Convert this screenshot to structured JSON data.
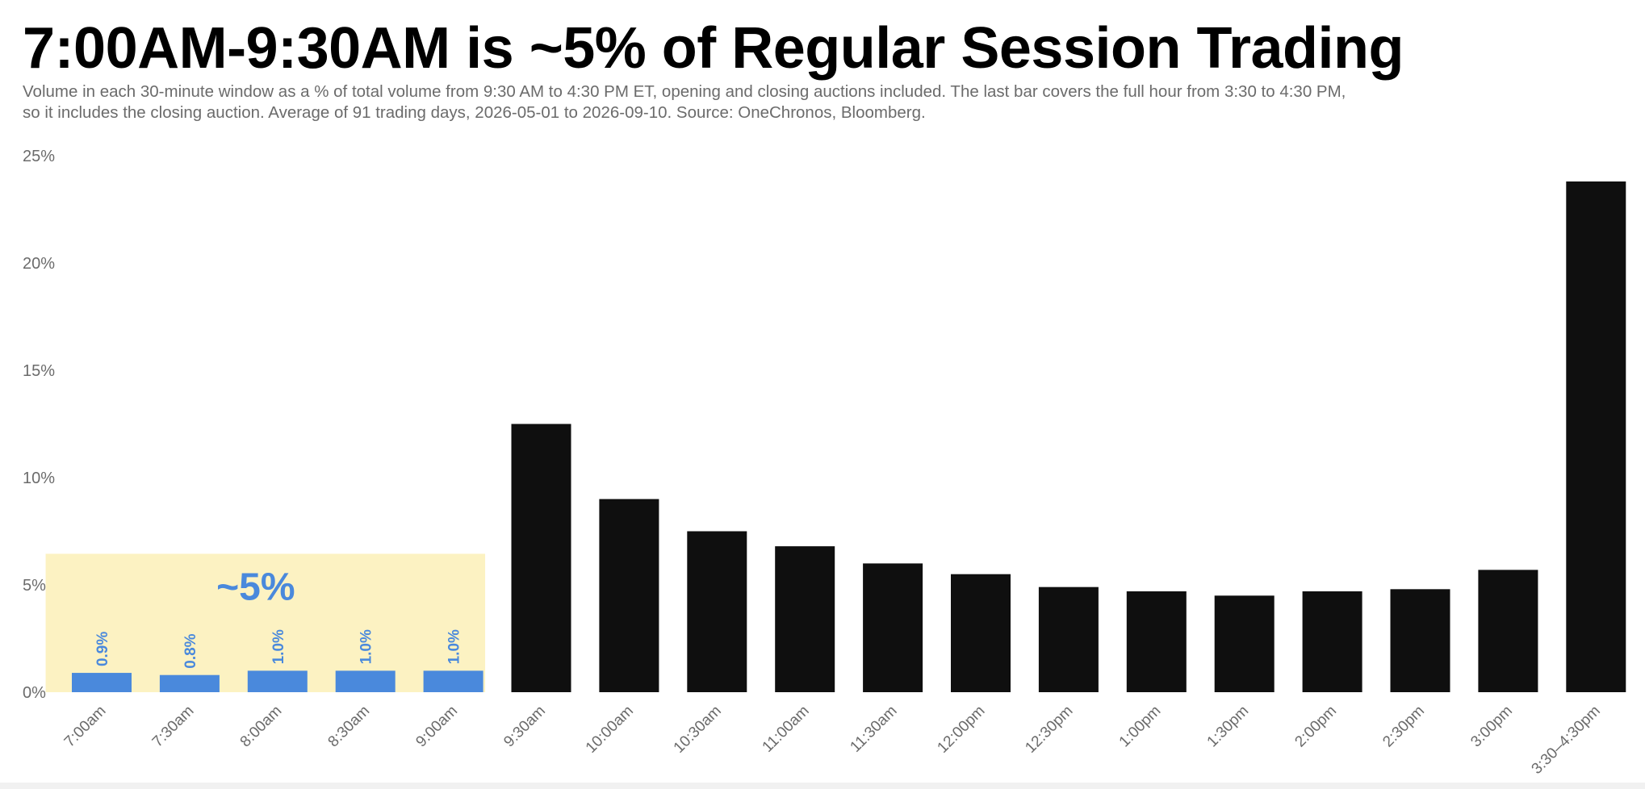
{
  "header": {
    "title": "7:00AM-9:30AM is ~5% of Regular Session Trading",
    "subtitle": "Volume in each 30-minute window as a % of total volume from 9:30 AM to 4:30 PM ET, opening and closing auctions included. The last bar covers the full hour from 3:30 to 4:30 PM, so it includes the closing auction. Average of 91 trading days, 2026-05-01 to 2026-09-10. Source: OneChronos, Bloomberg."
  },
  "chart_data": {
    "type": "bar",
    "title": "7:00AM-9:30AM is ~5% of Regular Session Trading",
    "ylim": [
      0,
      25
    ],
    "yticks": [
      0,
      5,
      10,
      15,
      20,
      25
    ],
    "ytick_labels": [
      "0%",
      "5%",
      "10%",
      "15%",
      "20%",
      "25%"
    ],
    "grid": false,
    "legend": "none",
    "categories": [
      "7:00am",
      "7:30am",
      "8:00am",
      "8:30am",
      "9:00am",
      "9:30am",
      "10:00am",
      "10:30am",
      "11:00am",
      "11:30am",
      "12:00pm",
      "12:30pm",
      "1:00pm",
      "1:30pm",
      "2:00pm",
      "2:30pm",
      "3:00pm",
      "3:30–4:30pm"
    ],
    "values": [
      0.9,
      0.8,
      1.0,
      1.0,
      1.0,
      12.5,
      9.0,
      7.5,
      6.8,
      6.0,
      5.5,
      4.9,
      4.7,
      4.5,
      4.7,
      4.8,
      5.7,
      23.8
    ],
    "data_labels": [
      "0.9%",
      "0.8%",
      "1.0%",
      "1.0%",
      "1.0%",
      null,
      null,
      null,
      null,
      null,
      null,
      null,
      null,
      null,
      null,
      null,
      null,
      null
    ],
    "highlight": {
      "categories": [
        "7:00am",
        "7:30am",
        "8:00am",
        "8:30am",
        "9:00am"
      ],
      "level": 6.45,
      "label": "~5%"
    },
    "colors": {
      "premarket_bar": "#4a89dc",
      "regular_bar": "#0f0f0f",
      "highlight_fill": "#fcf2c2",
      "axis_text": "#6b6b6b",
      "label_text": "#4a89dc"
    }
  }
}
